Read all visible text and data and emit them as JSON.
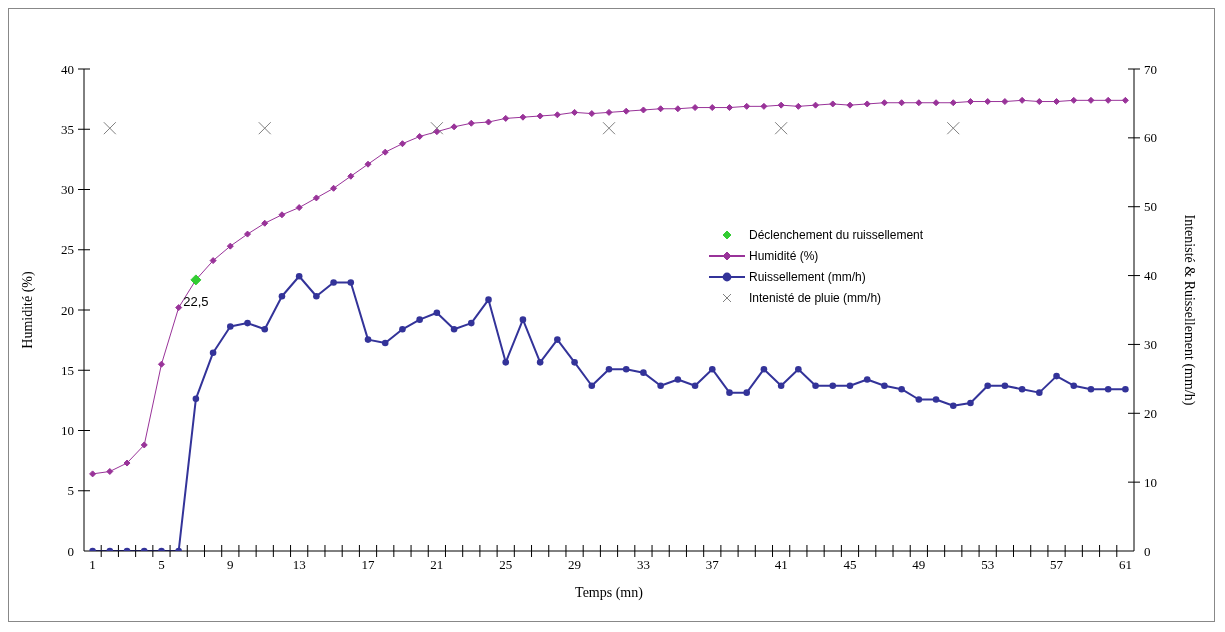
{
  "chart_data": {
    "type": "line",
    "xlabel": "Temps (mn)",
    "ylabel": "Humidité (%)",
    "y2label": "Intenisté & Ruissellement (mm/h)",
    "x": [
      1,
      2,
      3,
      4,
      5,
      6,
      7,
      8,
      9,
      10,
      11,
      12,
      13,
      14,
      15,
      16,
      17,
      18,
      19,
      20,
      21,
      22,
      23,
      24,
      25,
      26,
      27,
      28,
      29,
      30,
      31,
      32,
      33,
      34,
      35,
      36,
      37,
      38,
      39,
      40,
      41,
      42,
      43,
      44,
      45,
      46,
      47,
      48,
      49,
      50,
      51,
      52,
      53,
      54,
      55,
      56,
      57,
      58,
      59,
      60,
      61
    ],
    "series": [
      {
        "name": "Déclenchement du ruissellement",
        "type": "scatter",
        "color": "#33cc33",
        "marker": "diamond",
        "x": [
          7
        ],
        "values": [
          22.5
        ],
        "value_labels": [
          "22,5"
        ]
      },
      {
        "name": "Humidité (%)",
        "color": "#993399",
        "marker": "diamond",
        "values": [
          6.4,
          6.6,
          7.3,
          8.8,
          15.5,
          20.2,
          22.5,
          24.1,
          25.3,
          26.3,
          27.2,
          27.9,
          28.5,
          29.3,
          30.1,
          31.1,
          32.1,
          33.1,
          33.8,
          34.4,
          34.8,
          35.2,
          35.5,
          35.6,
          35.9,
          36.0,
          36.1,
          36.2,
          36.4,
          36.3,
          36.4,
          36.5,
          36.6,
          36.7,
          36.7,
          36.8,
          36.8,
          36.8,
          36.9,
          36.9,
          37.0,
          36.9,
          37.0,
          37.1,
          37.0,
          37.1,
          37.2,
          37.2,
          37.2,
          37.2,
          37.2,
          37.3,
          37.3,
          37.3,
          37.4,
          37.3,
          37.3,
          37.4,
          37.4,
          37.4,
          37.4
        ]
      },
      {
        "name": "Ruissellement (mm/h)",
        "axis": "y2",
        "color": "#333399",
        "marker": "circle",
        "values": [
          0,
          0,
          0,
          0,
          0,
          0,
          22.1,
          28.8,
          32.6,
          33.1,
          32.2,
          37.0,
          39.9,
          37.0,
          39.0,
          39.0,
          30.7,
          30.2,
          32.2,
          33.6,
          34.6,
          32.2,
          33.1,
          36.5,
          27.4,
          33.6,
          27.4,
          30.7,
          27.4,
          24.0,
          26.4,
          26.4,
          25.9,
          24.0,
          24.9,
          24.0,
          26.4,
          23.0,
          23.0,
          26.4,
          24.0,
          26.4,
          24.0,
          24.0,
          24.0,
          24.9,
          24.0,
          23.5,
          22.0,
          22.0,
          21.1,
          21.5,
          24.0,
          24.0,
          23.5,
          23.0,
          25.4,
          24.0,
          23.5,
          23.5,
          23.5
        ]
      },
      {
        "name": "Intenisté de pluie (mm/h)",
        "type": "scatter",
        "axis": "y2",
        "color": "#808080",
        "marker": "cross",
        "x": [
          2,
          11,
          21,
          31,
          41,
          51
        ],
        "values": [
          61.4,
          61.4,
          61.4,
          61.4,
          61.4,
          61.4
        ]
      }
    ],
    "xlim": [
      0.5,
      61.5
    ],
    "xticks": [
      1,
      5,
      9,
      13,
      17,
      21,
      25,
      29,
      33,
      37,
      41,
      45,
      49,
      53,
      57,
      61
    ],
    "ylim": [
      0,
      40
    ],
    "yticks": [
      0,
      5,
      10,
      15,
      20,
      25,
      30,
      35,
      40
    ],
    "y2lim": [
      0,
      70
    ],
    "y2ticks": [
      0,
      10,
      20,
      30,
      40,
      50,
      60,
      70
    ],
    "grid": false,
    "legend": "right",
    "line_style": "solid"
  }
}
